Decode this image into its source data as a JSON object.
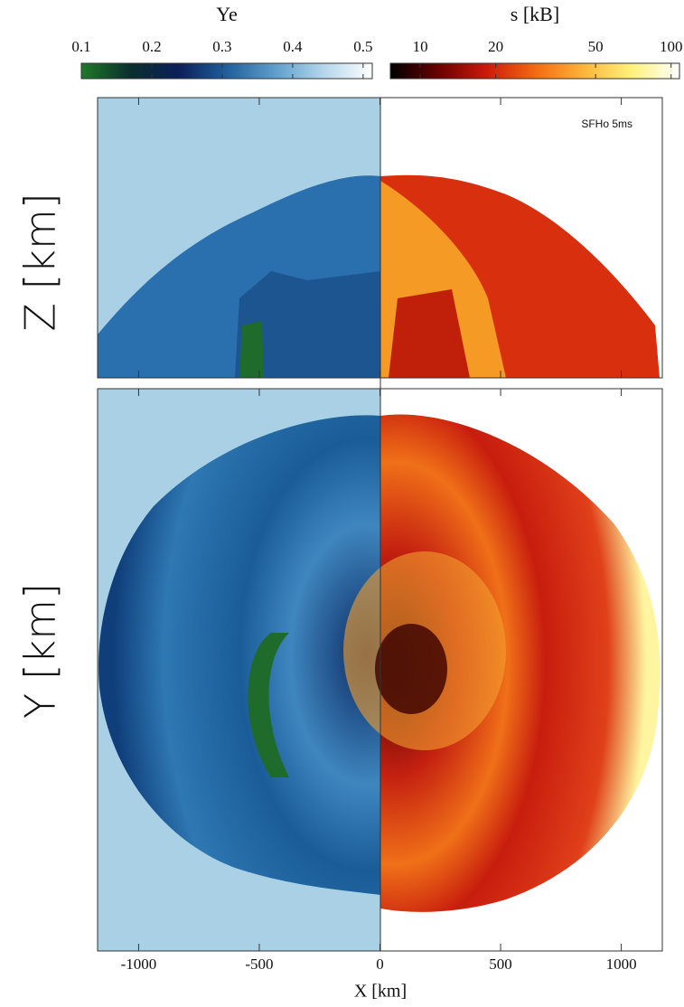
{
  "chart_data": {
    "type": "image",
    "annotation": "SFHo 5ms",
    "xlabel": "X [km]",
    "ylabel_top": "Z [km]",
    "ylabel_bottom": "Y [km]",
    "xlim": [
      -1170,
      1170
    ],
    "xticks": [
      -1000,
      -500,
      0,
      500,
      1000
    ],
    "colorbars": [
      {
        "label": "Ye",
        "lim": [
          0.1,
          0.513
        ],
        "ticks": [
          0.1,
          0.2,
          0.3,
          0.4,
          0.5
        ],
        "log": false,
        "colors": [
          "#1f7a2a",
          "#0a2f2c",
          "#0b1f5a",
          "#1f5f9c",
          "#5f9fcc",
          "#b5d6ea",
          "#ffffff"
        ]
      },
      {
        "label": "s [kB]",
        "lim": [
          7.6,
          108
        ],
        "ticks": [
          10,
          20,
          50,
          100
        ],
        "log": true,
        "colors": [
          "#000000",
          "#6a0000",
          "#cc1a0a",
          "#f36a10",
          "#fdb43a",
          "#fff27a",
          "#ffffff"
        ]
      }
    ]
  }
}
